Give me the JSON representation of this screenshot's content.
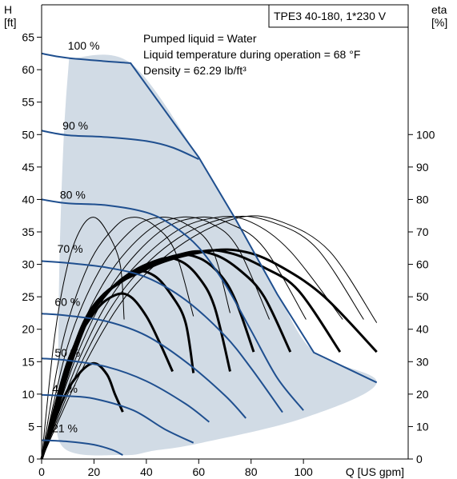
{
  "chart_data": {
    "type": "line",
    "title": "TPE3 40-180, 1*230 V",
    "info_lines": [
      "Pumped liquid = Water",
      "Liquid temperature during operation = 68 °F",
      "Density = 62.29 lb/ft³"
    ],
    "y_left_label": [
      "H",
      "[ft]"
    ],
    "y_right_label": [
      "eta",
      "[%]"
    ],
    "x_label": "Q [US gpm]",
    "xlim": [
      0,
      140
    ],
    "ylim_left": [
      0,
      70
    ],
    "ylim_right": [
      0,
      140
    ],
    "x_ticks": [
      0,
      20,
      40,
      60,
      80,
      100
    ],
    "y_left_ticks": [
      0,
      5,
      10,
      15,
      20,
      25,
      30,
      35,
      40,
      45,
      50,
      55,
      60,
      65
    ],
    "y_right_ticks": [
      0,
      10,
      20,
      30,
      40,
      50,
      60,
      70,
      80,
      90,
      100
    ],
    "operating_area": {
      "points": [
        [
          10.5,
          61.7
        ],
        [
          34,
          61.0
        ],
        [
          60,
          46.5
        ],
        [
          74,
          37
        ],
        [
          90,
          25.5
        ],
        [
          104,
          16.5
        ],
        [
          128,
          11.8
        ],
        [
          100,
          6.3
        ],
        [
          60,
          2.4
        ],
        [
          43,
          1.3
        ],
        [
          31,
          0.6
        ],
        [
          8,
          1.9
        ],
        [
          6.5,
          12
        ],
        [
          6.8,
          30
        ],
        [
          8.5,
          50
        ],
        [
          10.5,
          61.7
        ]
      ]
    },
    "series": [
      {
        "name": "100 %",
        "label_at": [
          10,
          63.1
        ],
        "points": [
          [
            0,
            62.5
          ],
          [
            10,
            61.8
          ],
          [
            34,
            61.0
          ],
          [
            60,
            46.5
          ],
          [
            74,
            37.0
          ],
          [
            90,
            25.4
          ],
          [
            104,
            16.4
          ],
          [
            128,
            11.8
          ]
        ]
      },
      {
        "name": "90 %",
        "label_at": [
          8,
          50.8
        ],
        "points": [
          [
            0,
            50.6
          ],
          [
            10,
            49.9
          ],
          [
            25,
            49.6
          ],
          [
            40,
            49.0
          ],
          [
            50,
            48.0
          ],
          [
            60,
            46.2
          ]
        ]
      },
      {
        "name": "80 %",
        "label_at": [
          7,
          40.1
        ],
        "points": [
          [
            0,
            40.0
          ],
          [
            10,
            39.4
          ],
          [
            25,
            39.1
          ],
          [
            40,
            38.0
          ],
          [
            50,
            36.0
          ],
          [
            60,
            32.6
          ],
          [
            70,
            27.0
          ],
          [
            80,
            19.8
          ],
          [
            90,
            12.5
          ],
          [
            100,
            7.5
          ]
        ]
      },
      {
        "name": "70 %",
        "label_at": [
          6,
          31.8
        ],
        "points": [
          [
            0,
            30.5
          ],
          [
            10,
            30.2
          ],
          [
            25,
            29.5
          ],
          [
            40,
            28.0
          ],
          [
            55,
            24.5
          ],
          [
            70,
            19.0
          ],
          [
            80,
            14.0
          ],
          [
            92,
            7.2
          ]
        ]
      },
      {
        "name": "60 %",
        "label_at": [
          5,
          23.6
        ],
        "points": [
          [
            0,
            22.4
          ],
          [
            10,
            22.1
          ],
          [
            25,
            21.2
          ],
          [
            40,
            19.0
          ],
          [
            55,
            15.0
          ],
          [
            70,
            9.8
          ],
          [
            78,
            6.3
          ]
        ]
      },
      {
        "name": "50 %",
        "label_at": [
          5,
          15.8
        ],
        "points": [
          [
            0,
            15.5
          ],
          [
            10,
            15.2
          ],
          [
            25,
            14.2
          ],
          [
            40,
            12.0
          ],
          [
            55,
            8.5
          ],
          [
            64,
            5.7
          ]
        ]
      },
      {
        "name": "40 %",
        "label_at": [
          4,
          10.2
        ],
        "points": [
          [
            0,
            9.9
          ],
          [
            10,
            9.7
          ],
          [
            20,
            9.3
          ],
          [
            35,
            7.5
          ],
          [
            47,
            4.6
          ],
          [
            58,
            2.5
          ]
        ]
      },
      {
        "name": "21 %",
        "label_at": [
          4,
          4.1
        ],
        "points": [
          [
            0,
            2.9
          ],
          [
            10,
            2.7
          ],
          [
            20,
            2.2
          ],
          [
            27,
            1.4
          ],
          [
            31,
            0.6
          ]
        ]
      }
    ],
    "efficiency_curves_thin": [
      {
        "points": [
          [
            0,
            0
          ],
          [
            5,
            38
          ],
          [
            10,
            60
          ],
          [
            15,
            71
          ],
          [
            20,
            74.5
          ],
          [
            25,
            70
          ],
          [
            30,
            60
          ],
          [
            31.5,
            43
          ]
        ]
      },
      {
        "points": [
          [
            0,
            0
          ],
          [
            8,
            36
          ],
          [
            18,
            60
          ],
          [
            28,
            71.5
          ],
          [
            35,
            74.5
          ],
          [
            43,
            72
          ],
          [
            51,
            64
          ],
          [
            58,
            44
          ]
        ]
      },
      {
        "points": [
          [
            0,
            0
          ],
          [
            10,
            35
          ],
          [
            22,
            58
          ],
          [
            35,
            71
          ],
          [
            45,
            74.5
          ],
          [
            55,
            72.5
          ],
          [
            65,
            65
          ],
          [
            72,
            45
          ]
        ]
      },
      {
        "points": [
          [
            0,
            0
          ],
          [
            12,
            34
          ],
          [
            25,
            56
          ],
          [
            40,
            70
          ],
          [
            53,
            74.5
          ],
          [
            65,
            72.5
          ],
          [
            75,
            65
          ],
          [
            87,
            43
          ]
        ]
      },
      {
        "points": [
          [
            0,
            0
          ],
          [
            14,
            33
          ],
          [
            28,
            55
          ],
          [
            45,
            70
          ],
          [
            60,
            74.5
          ],
          [
            72,
            72.5
          ],
          [
            85,
            65
          ],
          [
            101,
            43
          ]
        ]
      },
      {
        "points": [
          [
            0,
            0
          ],
          [
            15,
            32
          ],
          [
            30,
            54
          ],
          [
            50,
            69.5
          ],
          [
            67,
            74.5
          ],
          [
            80,
            73
          ],
          [
            95,
            64
          ],
          [
            115,
            43
          ]
        ]
      },
      {
        "points": [
          [
            0,
            0
          ],
          [
            16,
            31
          ],
          [
            32,
            53
          ],
          [
            52,
            68
          ],
          [
            72,
            74.5
          ],
          [
            88,
            73
          ],
          [
            105,
            65
          ],
          [
            123,
            43
          ]
        ]
      },
      {
        "points": [
          [
            0,
            0
          ],
          [
            17,
            30
          ],
          [
            34,
            52
          ],
          [
            55,
            67
          ],
          [
            76,
            74.5
          ],
          [
            92,
            73
          ],
          [
            110,
            64
          ],
          [
            128,
            42
          ]
        ]
      }
    ],
    "efficiency_curves_bold": [
      {
        "points": [
          [
            0,
            0
          ],
          [
            8,
            18
          ],
          [
            14,
            26
          ],
          [
            20,
            29.5
          ],
          [
            25,
            26
          ],
          [
            28,
            20
          ],
          [
            31,
            14.5
          ]
        ]
      },
      {
        "points": [
          [
            0,
            0
          ],
          [
            10,
            30
          ],
          [
            20,
            45
          ],
          [
            28,
            50.5
          ],
          [
            34,
            50
          ],
          [
            40,
            44
          ],
          [
            45,
            36
          ],
          [
            50,
            27
          ]
        ]
      },
      {
        "points": [
          [
            0,
            0
          ],
          [
            13,
            36
          ],
          [
            25,
            51
          ],
          [
            35,
            57.5
          ],
          [
            43,
            56.5
          ],
          [
            50,
            50
          ],
          [
            55,
            42
          ],
          [
            58,
            26.5
          ]
        ]
      },
      {
        "points": [
          [
            0,
            0
          ],
          [
            15,
            40
          ],
          [
            30,
            55
          ],
          [
            45,
            61.5
          ],
          [
            53,
            61
          ],
          [
            60,
            56
          ],
          [
            66,
            47
          ],
          [
            72,
            27
          ]
        ]
      },
      {
        "points": [
          [
            0,
            0
          ],
          [
            16,
            42
          ],
          [
            33,
            56
          ],
          [
            50,
            62.5
          ],
          [
            60,
            62
          ],
          [
            68,
            57
          ],
          [
            74,
            49
          ],
          [
            81,
            33
          ]
        ]
      },
      {
        "points": [
          [
            0,
            0
          ],
          [
            17,
            43
          ],
          [
            35,
            57
          ],
          [
            55,
            63.5
          ],
          [
            66,
            63
          ],
          [
            76,
            58
          ],
          [
            85,
            50
          ],
          [
            95,
            33
          ]
        ]
      },
      {
        "points": [
          [
            0,
            0
          ],
          [
            18,
            44
          ],
          [
            38,
            58
          ],
          [
            60,
            63.8
          ],
          [
            72,
            63.5
          ],
          [
            85,
            59
          ],
          [
            98,
            52
          ],
          [
            114,
            33
          ]
        ]
      },
      {
        "points": [
          [
            0,
            0
          ],
          [
            19,
            45
          ],
          [
            40,
            58.5
          ],
          [
            63,
            64
          ],
          [
            78,
            63.8
          ],
          [
            92,
            59
          ],
          [
            108,
            50
          ],
          [
            128,
            33
          ]
        ]
      }
    ],
    "colors": {
      "area_fill": "#d1dbe5",
      "head_curve": "#1f4f8f",
      "axis": "#000000"
    },
    "grid": false
  }
}
